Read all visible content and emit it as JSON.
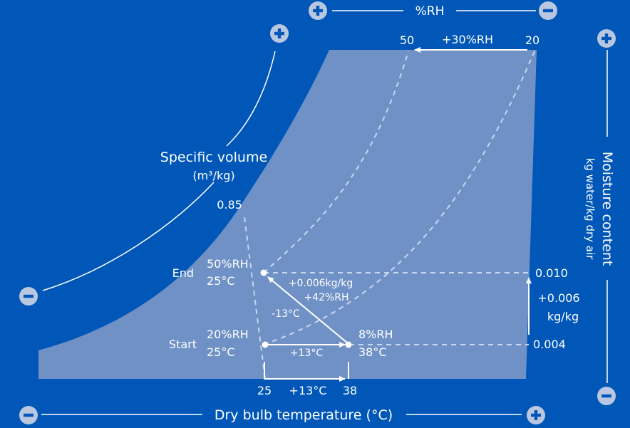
{
  "colors": {
    "background": "#0057b8",
    "region": "#6f91c6",
    "lines": "#ffffff",
    "dashed": "#c9d7ee",
    "icon_fill": "#b9c7e0",
    "icon_glyph": "#0057b8"
  },
  "icons": {
    "increase": "plus-circle-icon",
    "decrease": "minus-circle-icon"
  },
  "labels": {
    "rh_axis": "%RH",
    "rh_shift": "+30%RH",
    "rh_top_left": "50",
    "rh_top_right": "20",
    "specific_volume": "Specific volume",
    "specific_volume_unit": "(m³/kg)",
    "volume_value": "0.85",
    "moisture_axis": "Moisture content",
    "moisture_unit": "kg water/kg dry air",
    "moisture_end": "0.010",
    "moisture_change_1": "+0.006",
    "moisture_change_2": "kg/kg",
    "moisture_start": "0.004",
    "temp_axis": "Dry bulb temperature (°C)",
    "temp_start": "25",
    "temp_shift": "+13°C",
    "temp_end": "38"
  },
  "points": {
    "end": {
      "name": "End",
      "rh": "50%RH",
      "temp": "25°C"
    },
    "start": {
      "name": "Start",
      "rh": "20%RH",
      "temp": "25°C"
    },
    "mid": {
      "rh": "8%RH",
      "temp": "38°C"
    }
  },
  "process": {
    "heating": "+13°C",
    "cooling": "-13°C",
    "moisture_gain": "+0.006kg/kg",
    "rh_gain": "+42%RH"
  }
}
